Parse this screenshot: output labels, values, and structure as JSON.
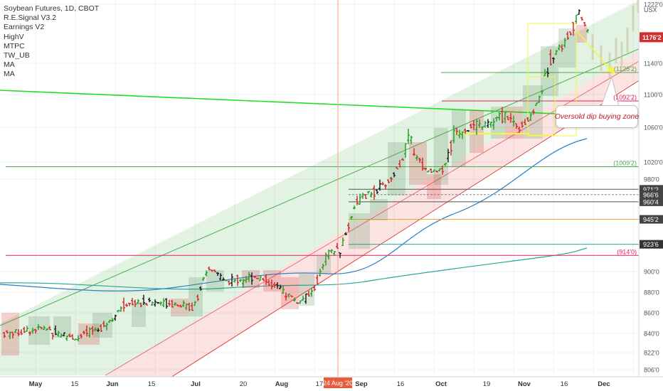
{
  "chart_data": {
    "type": "candlestick",
    "title": "Soybean Futures, 1D, CBOT",
    "indicators": [
      "R.E.Signal V3.2",
      "Earnings V2",
      "HighV",
      "MTPC",
      "TW_UB",
      "MA",
      "MA"
    ],
    "currency": "USX",
    "ylim": [
      8000,
      12380
    ],
    "y_ticks": [
      {
        "value": 12220,
        "label": "1222'0"
      },
      {
        "value": 11400,
        "label": "1140'0"
      },
      {
        "value": 11000,
        "label": "1100'0"
      },
      {
        "value": 10600,
        "label": "1060'0"
      },
      {
        "value": 10200,
        "label": "1020'0"
      },
      {
        "value": 9800,
        "label": "980'0"
      },
      {
        "value": 9000,
        "label": "900'0"
      },
      {
        "value": 8800,
        "label": "880'0"
      },
      {
        "value": 8600,
        "label": "860'0"
      },
      {
        "value": 8400,
        "label": "840'0"
      },
      {
        "value": 8220,
        "label": "822'0"
      },
      {
        "value": 8060,
        "label": "806'0"
      }
    ],
    "x_ticks": [
      {
        "px": 50,
        "label": "May",
        "bold": true
      },
      {
        "px": 105,
        "label": "15",
        "bold": false
      },
      {
        "px": 158,
        "label": "Jun",
        "bold": true
      },
      {
        "px": 213,
        "label": "15",
        "bold": false
      },
      {
        "px": 275,
        "label": "Jul",
        "bold": true
      },
      {
        "px": 342,
        "label": "20",
        "bold": false
      },
      {
        "px": 396,
        "label": "Aug",
        "bold": true
      },
      {
        "px": 449,
        "label": "17",
        "bold": false
      },
      {
        "px": 508,
        "label": "Sep",
        "bold": true
      },
      {
        "px": 563,
        "label": "16",
        "bold": false
      },
      {
        "px": 620,
        "label": "Oct",
        "bold": true
      },
      {
        "px": 684,
        "label": "19",
        "bold": false
      },
      {
        "px": 737,
        "label": "Nov",
        "bold": true
      },
      {
        "px": 793,
        "label": "16",
        "bold": false
      },
      {
        "px": 849,
        "label": "Dec",
        "bold": true
      }
    ],
    "cursor_date": "24 Aug '20",
    "last_price": {
      "value": 11762,
      "label": "1176'2"
    },
    "levels": [
      {
        "value": 11282,
        "label": "(1128'2)",
        "color": "#4caf50",
        "boxed": false
      },
      {
        "value": 10922,
        "label": "(1092'2)",
        "color": "#e91e63",
        "boxed": false
      },
      {
        "value": 10092,
        "label": "(1009'2)",
        "color": "#4caf50",
        "boxed": false
      },
      {
        "value": 9712,
        "label": "971'2",
        "color": "#555555",
        "boxed": true
      },
      {
        "value": 9666,
        "label": "966'6",
        "color": "#888888",
        "boxed": true
      },
      {
        "value": 9604,
        "label": "960'4",
        "color": "#555555",
        "boxed": true
      },
      {
        "value": 9452,
        "label": "945'2",
        "color": "#f5a623",
        "boxed": true
      },
      {
        "value": 9236,
        "label": "923'6",
        "color": "#26a69a",
        "boxed": true
      },
      {
        "value": 9140,
        "label": "(914'0)",
        "color": "#e91e63",
        "boxed": false
      }
    ],
    "annotation": "Oversold dip buying zone",
    "colors": {
      "up": "#2e9e2e",
      "down": "#d32f2f",
      "neutral": "#222222",
      "channel_green": "#4caf50",
      "channel_red": "#e53935",
      "ma": "#26a69a",
      "long_line": "#22dd22",
      "highlight": "#f5f542"
    }
  }
}
